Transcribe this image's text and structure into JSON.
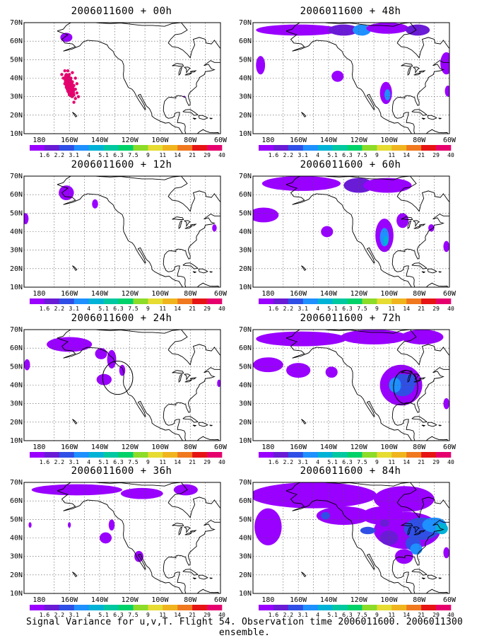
{
  "caption": "Signal Variance for u,v,T. Flight 54. Observation time 2006011600. 2006011300 ensemble.",
  "lat_labels": [
    "70N",
    "60N",
    "50N",
    "40N",
    "30N",
    "20N",
    "10N"
  ],
  "lon_labels": [
    "180",
    "160W",
    "140W",
    "120W",
    "100W",
    "80W",
    "60W"
  ],
  "colorbar": {
    "labels": [
      "1.6",
      "2.2",
      "3.1",
      "4",
      "5.1",
      "6.3",
      "7.5",
      "9",
      "11",
      "14",
      "21",
      "29",
      "40"
    ],
    "colors": [
      "#9900ff",
      "#6a1bd6",
      "#2f4fe6",
      "#1e90ff",
      "#00b2d6",
      "#00c8a0",
      "#00d26a",
      "#8cdc28",
      "#e6dc32",
      "#f0b41e",
      "#f0781e",
      "#e61414",
      "#e6006e"
    ]
  },
  "panels": [
    {
      "title": "2006011600 + 00h"
    },
    {
      "title": "2006011600 + 48h"
    },
    {
      "title": "2006011600 + 12h"
    },
    {
      "title": "2006011600 + 60h"
    },
    {
      "title": "2006011600 + 24h"
    },
    {
      "title": "2006011600 + 72h"
    },
    {
      "title": "2006011600 + 36h"
    },
    {
      "title": "2006011600 + 84h"
    }
  ]
}
